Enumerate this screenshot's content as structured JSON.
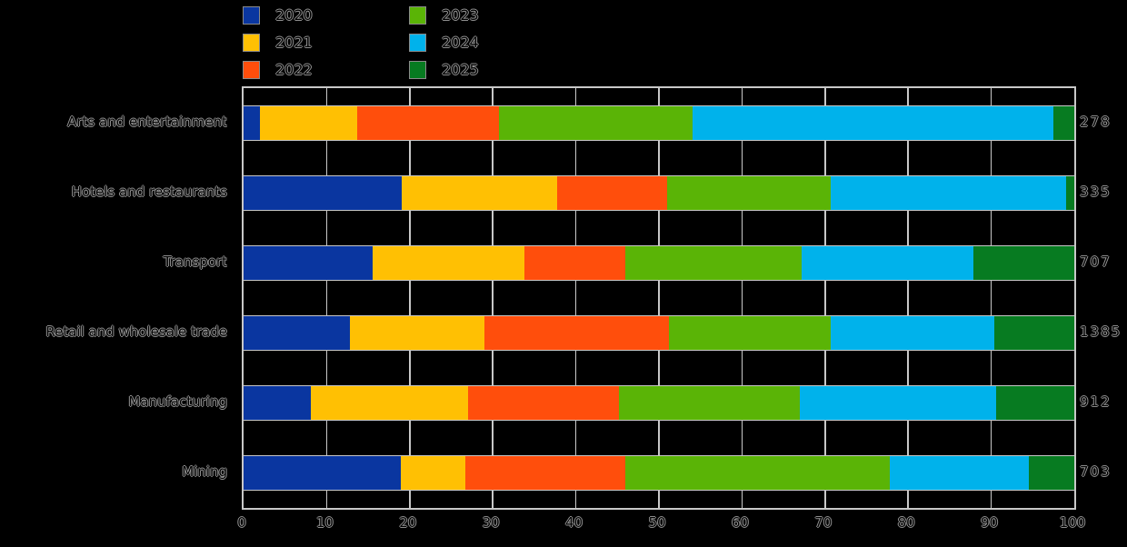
{
  "figure": {
    "background": "#000000",
    "grid_color": "#c8c8c8",
    "text_color": "#000000",
    "text_halo": "#afafaf"
  },
  "legend": {
    "columns": 2,
    "items": [
      {
        "label": "2020",
        "color": "#0a36a0"
      },
      {
        "label": "2021",
        "color": "#ffc003"
      },
      {
        "label": "2022",
        "color": "#ff4e0c"
      },
      {
        "label": "2023",
        "color": "#5ab406"
      },
      {
        "label": "2024",
        "color": "#00b2eb"
      },
      {
        "label": "2025",
        "color": "#077b21"
      }
    ]
  },
  "chart_data": {
    "type": "bar",
    "orientation": "horizontal",
    "stacked": true,
    "units": "percent share of bar total (x-axis 0-100)",
    "title": "",
    "xlabel": "",
    "ylabel": "",
    "categories": [
      "Arts and entertainment",
      "Hotels and restaurants",
      "Transport",
      "Retail and wholesale trade",
      "Manufacturing",
      "Mining"
    ],
    "series": [
      {
        "name": "2020",
        "color": "#0a36a0",
        "values": [
          2.0,
          19.0,
          15.5,
          12.8,
          8.1,
          18.9
        ]
      },
      {
        "name": "2021",
        "color": "#ffc003",
        "values": [
          11.7,
          18.8,
          18.3,
          16.2,
          18.9,
          7.8
        ]
      },
      {
        "name": "2022",
        "color": "#ff4e0c",
        "values": [
          17.1,
          13.2,
          12.1,
          22.2,
          18.2,
          19.2
        ]
      },
      {
        "name": "2023",
        "color": "#5ab406",
        "values": [
          23.3,
          19.7,
          21.3,
          19.5,
          21.8,
          31.9
        ]
      },
      {
        "name": "2024",
        "color": "#00b2eb",
        "values": [
          43.4,
          28.3,
          20.7,
          19.7,
          23.6,
          16.7
        ]
      },
      {
        "name": "2025",
        "color": "#077b21",
        "values": [
          2.5,
          1.0,
          12.1,
          9.6,
          9.4,
          5.5
        ]
      }
    ],
    "bar_totals": [
      "278",
      "335",
      "707",
      "1385",
      "912",
      "703"
    ],
    "x_ticks": [
      "0",
      "10",
      "20",
      "30",
      "40",
      "50",
      "60",
      "70",
      "80",
      "90",
      "100"
    ],
    "xlim": [
      0,
      100
    ],
    "grid": true,
    "legend_position": "top-left, two columns"
  }
}
